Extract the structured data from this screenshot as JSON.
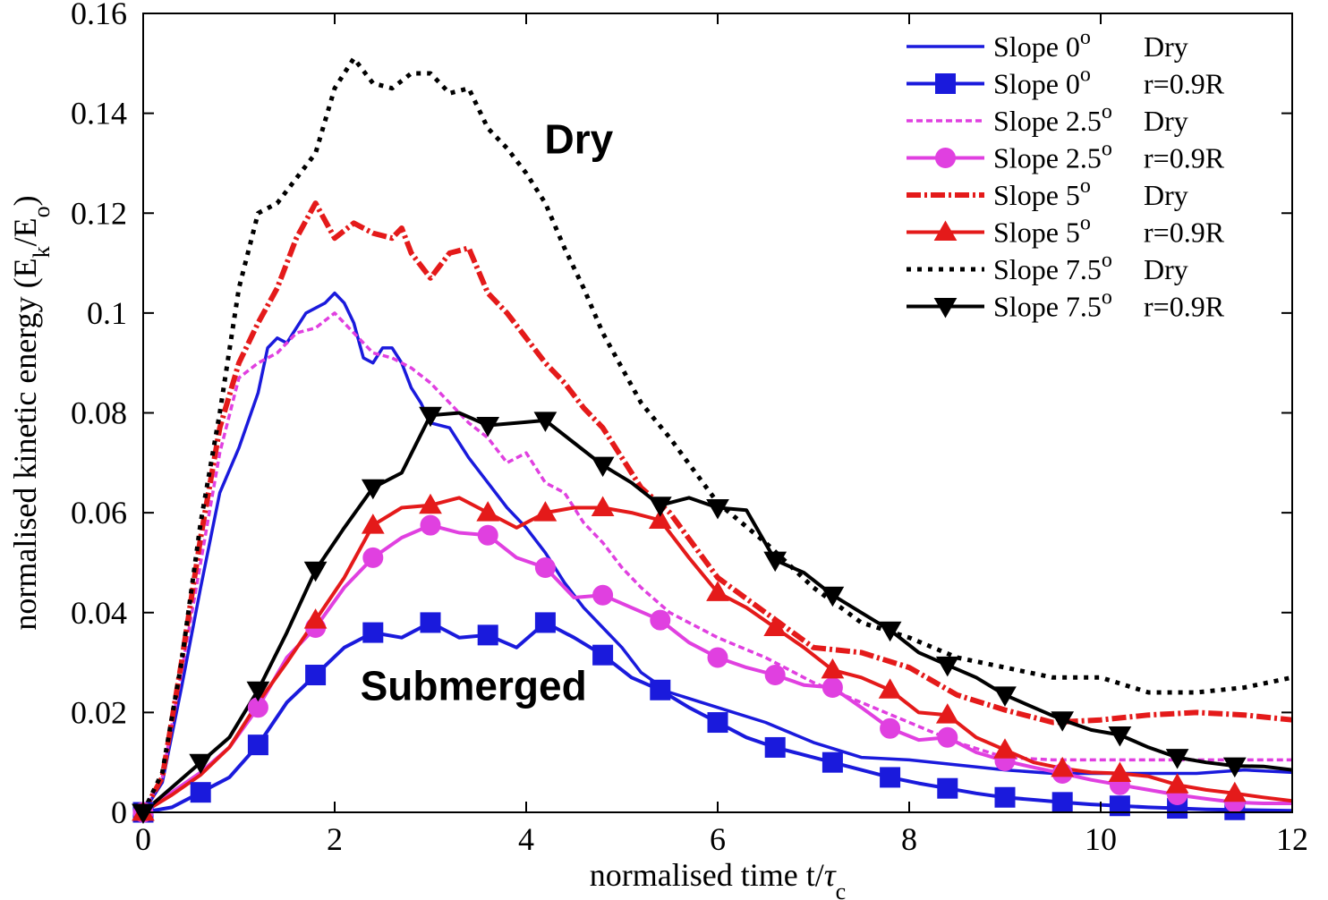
{
  "chart_data": {
    "type": "line",
    "xlabel": "normalised time t/τc",
    "xlabel_parts": {
      "main": "normalised time t/",
      "sym": "τ",
      "sub": "c"
    },
    "ylabel": "normalised kinetic energy (Ek/Eo)",
    "ylabel_parts": {
      "a": "normalised kinetic energy (E",
      "s1": "k",
      "b": "/E",
      "s2": "o",
      "c": ")"
    },
    "xlim": [
      0,
      12
    ],
    "ylim": [
      0,
      0.16
    ],
    "xticks": [
      0,
      2,
      4,
      6,
      8,
      10,
      12
    ],
    "yticks": [
      0,
      0.02,
      0.04,
      0.06,
      0.08,
      0.1,
      0.12,
      0.14,
      0.16
    ],
    "xtick_labels": [
      "0",
      "2",
      "4",
      "6",
      "8",
      "10",
      "12"
    ],
    "ytick_labels": [
      "0",
      "0.02",
      "0.04",
      "0.06",
      "0.08",
      "0.1",
      "0.12",
      "0.14",
      "0.16"
    ],
    "grid": false,
    "legend_position": "top-right",
    "annotations": [
      {
        "text": "Dry",
        "x": 4.55,
        "y": 0.132
      },
      {
        "text": "Submerged",
        "x": 3.45,
        "y": 0.0225
      }
    ],
    "series": [
      {
        "name": "Slope 0° Dry",
        "label": {
          "a": "Slope 0",
          "sup": "o",
          "b": "Dry"
        },
        "color": "#1a1adc",
        "style": "solid",
        "marker": "none",
        "x": [
          0,
          0.2,
          0.4,
          0.6,
          0.8,
          1.0,
          1.2,
          1.3,
          1.4,
          1.5,
          1.6,
          1.7,
          1.8,
          1.9,
          2.0,
          2.1,
          2.2,
          2.3,
          2.4,
          2.5,
          2.6,
          2.7,
          2.8,
          2.9,
          3.0,
          3.2,
          3.4,
          3.6,
          3.8,
          4.0,
          4.2,
          4.4,
          4.6,
          4.8,
          5.0,
          5.2,
          5.5,
          6.0,
          6.5,
          7.0,
          7.5,
          8.0,
          8.5,
          9.0,
          9.5,
          10.0,
          10.5,
          11.0,
          11.5,
          12.0
        ],
        "y": [
          0,
          0.006,
          0.025,
          0.045,
          0.064,
          0.073,
          0.084,
          0.093,
          0.095,
          0.094,
          0.097,
          0.1,
          0.101,
          0.102,
          0.104,
          0.102,
          0.098,
          0.091,
          0.09,
          0.093,
          0.093,
          0.09,
          0.085,
          0.082,
          0.078,
          0.077,
          0.071,
          0.066,
          0.061,
          0.057,
          0.052,
          0.046,
          0.041,
          0.037,
          0.033,
          0.028,
          0.024,
          0.021,
          0.018,
          0.014,
          0.011,
          0.0105,
          0.0095,
          0.0085,
          0.0078,
          0.0078,
          0.0078,
          0.0078,
          0.0085,
          0.008
        ]
      },
      {
        "name": "Slope 0° r=0.9R",
        "label": {
          "a": "Slope 0",
          "sup": "o",
          "b": "r=0.9R"
        },
        "color": "#1a1adc",
        "style": "solid",
        "marker": "square",
        "x": [
          0,
          0.3,
          0.6,
          0.9,
          1.2,
          1.5,
          1.8,
          2.1,
          2.4,
          2.7,
          3.0,
          3.3,
          3.6,
          3.9,
          4.2,
          4.5,
          4.8,
          5.1,
          5.4,
          5.7,
          6.0,
          6.3,
          6.6,
          6.9,
          7.2,
          7.5,
          7.8,
          8.1,
          8.4,
          8.7,
          9.0,
          9.3,
          9.6,
          9.9,
          10.2,
          10.5,
          10.8,
          11.1,
          11.4,
          11.7,
          12.0
        ],
        "y": [
          0,
          0.001,
          0.004,
          0.007,
          0.0135,
          0.022,
          0.0275,
          0.033,
          0.036,
          0.035,
          0.038,
          0.035,
          0.0355,
          0.033,
          0.038,
          0.035,
          0.0315,
          0.027,
          0.0245,
          0.021,
          0.018,
          0.015,
          0.013,
          0.0115,
          0.01,
          0.0085,
          0.007,
          0.0058,
          0.0048,
          0.0038,
          0.003,
          0.0025,
          0.002,
          0.0016,
          0.0013,
          0.001,
          0.0008,
          0.0006,
          0.0005,
          0.0004,
          0.0003
        ],
        "marker_x": [
          0,
          0.6,
          1.2,
          1.8,
          2.4,
          3.0,
          3.6,
          4.2,
          4.8,
          5.4,
          6.0,
          6.6,
          7.2,
          7.8,
          8.4,
          9.0,
          9.6,
          10.2,
          10.8,
          11.4
        ],
        "marker_y": [
          0,
          0.004,
          0.0135,
          0.0275,
          0.036,
          0.038,
          0.0355,
          0.038,
          0.0315,
          0.0245,
          0.018,
          0.013,
          0.01,
          0.007,
          0.0048,
          0.003,
          0.002,
          0.0013,
          0.0008,
          0.0005
        ]
      },
      {
        "name": "Slope 2.5° Dry",
        "label": {
          "a": "Slope 2.5",
          "sup": "o",
          "b": "Dry"
        },
        "color": "#e040e0",
        "style": "dashed",
        "marker": "none",
        "x": [
          0,
          0.2,
          0.4,
          0.6,
          0.8,
          1.0,
          1.2,
          1.4,
          1.6,
          1.8,
          2.0,
          2.2,
          2.4,
          2.6,
          2.8,
          3.0,
          3.2,
          3.4,
          3.6,
          3.8,
          4.0,
          4.2,
          4.4,
          4.6,
          4.8,
          5.0,
          5.2,
          5.5,
          6.0,
          6.5,
          7.0,
          7.5,
          8.0,
          8.5,
          9.0,
          9.5,
          10.0,
          10.5,
          11.0,
          11.5,
          12.0
        ],
        "y": [
          0,
          0.007,
          0.028,
          0.05,
          0.072,
          0.087,
          0.09,
          0.092,
          0.096,
          0.097,
          0.1,
          0.096,
          0.092,
          0.091,
          0.089,
          0.086,
          0.082,
          0.078,
          0.075,
          0.07,
          0.072,
          0.066,
          0.064,
          0.058,
          0.054,
          0.049,
          0.045,
          0.04,
          0.035,
          0.031,
          0.026,
          0.022,
          0.018,
          0.014,
          0.011,
          0.0105,
          0.0105,
          0.0105,
          0.0105,
          0.0105,
          0.0105
        ]
      },
      {
        "name": "Slope 2.5° r=0.9R",
        "label": {
          "a": "Slope 2.5",
          "sup": "o",
          "b": "r=0.9R"
        },
        "color": "#e040e0",
        "style": "solid",
        "marker": "circle",
        "x": [
          0,
          0.3,
          0.6,
          0.9,
          1.2,
          1.5,
          1.8,
          2.1,
          2.4,
          2.7,
          3.0,
          3.3,
          3.6,
          3.9,
          4.2,
          4.5,
          4.8,
          5.1,
          5.4,
          5.7,
          6.0,
          6.3,
          6.6,
          6.9,
          7.2,
          7.5,
          7.8,
          8.1,
          8.4,
          8.7,
          9.0,
          9.3,
          9.6,
          9.9,
          10.2,
          10.5,
          10.8,
          11.1,
          11.4,
          11.7,
          12.0
        ],
        "y": [
          0,
          0.004,
          0.008,
          0.013,
          0.021,
          0.031,
          0.037,
          0.045,
          0.051,
          0.055,
          0.0575,
          0.056,
          0.0555,
          0.051,
          0.049,
          0.043,
          0.0435,
          0.041,
          0.0385,
          0.034,
          0.031,
          0.029,
          0.0275,
          0.0255,
          0.025,
          0.021,
          0.0168,
          0.0145,
          0.015,
          0.012,
          0.0103,
          0.009,
          0.0078,
          0.0065,
          0.0055,
          0.0045,
          0.0035,
          0.0027,
          0.002,
          0.0018,
          0.0018
        ],
        "marker_x": [
          0,
          1.2,
          1.8,
          2.4,
          3.0,
          3.6,
          4.2,
          4.8,
          5.4,
          6.0,
          6.6,
          7.2,
          7.8,
          8.4,
          9.0,
          9.6,
          10.2,
          10.8,
          11.4
        ],
        "marker_y": [
          0,
          0.021,
          0.037,
          0.051,
          0.0575,
          0.0555,
          0.049,
          0.0435,
          0.0385,
          0.031,
          0.0275,
          0.025,
          0.0168,
          0.015,
          0.0103,
          0.0078,
          0.0055,
          0.0035,
          0.002
        ]
      },
      {
        "name": "Slope 5° Dry",
        "label": {
          "a": "Slope 5",
          "sup": "o",
          "b": "Dry"
        },
        "color": "#e41a1a",
        "style": "dashdot",
        "marker": "none",
        "x": [
          0,
          0.2,
          0.4,
          0.6,
          0.8,
          1.0,
          1.2,
          1.4,
          1.6,
          1.8,
          2.0,
          2.2,
          2.4,
          2.6,
          2.7,
          2.8,
          3.0,
          3.2,
          3.4,
          3.6,
          3.8,
          4.0,
          4.2,
          4.4,
          4.6,
          4.8,
          5.0,
          5.2,
          5.5,
          6.0,
          6.5,
          7.0,
          7.5,
          8.0,
          8.5,
          9.0,
          9.5,
          10.0,
          10.5,
          11.0,
          11.5,
          12.0
        ],
        "y": [
          0,
          0.007,
          0.03,
          0.055,
          0.077,
          0.09,
          0.098,
          0.105,
          0.115,
          0.122,
          0.115,
          0.118,
          0.116,
          0.115,
          0.117,
          0.112,
          0.107,
          0.112,
          0.113,
          0.104,
          0.1,
          0.095,
          0.09,
          0.086,
          0.081,
          0.077,
          0.071,
          0.065,
          0.06,
          0.047,
          0.04,
          0.033,
          0.032,
          0.029,
          0.0235,
          0.0205,
          0.018,
          0.0185,
          0.0195,
          0.02,
          0.0195,
          0.0185
        ]
      },
      {
        "name": "Slope 5° r=0.9R",
        "label": {
          "a": "Slope 5",
          "sup": "o",
          "b": "r=0.9R"
        },
        "color": "#e41a1a",
        "style": "solid",
        "marker": "triangle-up",
        "x": [
          0,
          0.3,
          0.6,
          0.9,
          1.2,
          1.5,
          1.8,
          2.1,
          2.4,
          2.7,
          3.0,
          3.3,
          3.6,
          3.9,
          4.2,
          4.5,
          4.8,
          5.1,
          5.4,
          5.7,
          6.0,
          6.3,
          6.6,
          6.9,
          7.2,
          7.5,
          7.8,
          8.1,
          8.4,
          8.7,
          9.0,
          9.3,
          9.6,
          9.9,
          10.2,
          10.5,
          10.8,
          11.1,
          11.4,
          11.7,
          12.0
        ],
        "y": [
          0,
          0.0035,
          0.0075,
          0.013,
          0.022,
          0.03,
          0.0385,
          0.047,
          0.0575,
          0.061,
          0.0615,
          0.063,
          0.06,
          0.057,
          0.06,
          0.061,
          0.061,
          0.06,
          0.0585,
          0.051,
          0.044,
          0.041,
          0.037,
          0.033,
          0.0285,
          0.027,
          0.0245,
          0.02,
          0.0195,
          0.015,
          0.0125,
          0.01,
          0.0088,
          0.008,
          0.0078,
          0.0072,
          0.0055,
          0.0045,
          0.0038,
          0.003,
          0.0023
        ],
        "marker_x": [
          0,
          1.8,
          2.4,
          3.0,
          3.6,
          4.2,
          4.8,
          5.4,
          6.0,
          6.6,
          7.2,
          7.8,
          8.4,
          9.0,
          9.6,
          10.2,
          10.8,
          11.4
        ],
        "marker_y": [
          0,
          0.0385,
          0.0575,
          0.0615,
          0.06,
          0.06,
          0.061,
          0.0585,
          0.044,
          0.037,
          0.0285,
          0.0245,
          0.0195,
          0.0125,
          0.0088,
          0.0078,
          0.0055,
          0.0038
        ]
      },
      {
        "name": "Slope 7.5° Dry",
        "label": {
          "a": "Slope 7.5",
          "sup": "o",
          "b": "Dry"
        },
        "color": "#000000",
        "style": "dotted",
        "marker": "none",
        "x": [
          0,
          0.2,
          0.4,
          0.6,
          0.8,
          1.0,
          1.2,
          1.4,
          1.6,
          1.8,
          2.0,
          2.2,
          2.4,
          2.6,
          2.8,
          3.0,
          3.2,
          3.4,
          3.6,
          3.8,
          4.0,
          4.2,
          4.4,
          4.6,
          4.8,
          5.0,
          5.2,
          5.5,
          6.0,
          6.5,
          7.0,
          7.5,
          8.0,
          8.5,
          9.0,
          9.5,
          10.0,
          10.5,
          11.0,
          11.5,
          12.0
        ],
        "y": [
          0,
          0.008,
          0.03,
          0.058,
          0.08,
          0.105,
          0.12,
          0.122,
          0.127,
          0.132,
          0.145,
          0.151,
          0.146,
          0.145,
          0.148,
          0.148,
          0.144,
          0.145,
          0.137,
          0.133,
          0.128,
          0.122,
          0.113,
          0.105,
          0.096,
          0.089,
          0.082,
          0.075,
          0.062,
          0.054,
          0.045,
          0.038,
          0.035,
          0.031,
          0.029,
          0.027,
          0.027,
          0.024,
          0.024,
          0.025,
          0.027
        ]
      },
      {
        "name": "Slope 7.5° r=0.9R",
        "label": {
          "a": "Slope 7.5",
          "sup": "o",
          "b": "r=0.9R"
        },
        "color": "#000000",
        "style": "solid",
        "marker": "triangle-down",
        "x": [
          0,
          0.3,
          0.6,
          0.9,
          1.2,
          1.5,
          1.8,
          2.1,
          2.4,
          2.7,
          3.0,
          3.3,
          3.6,
          3.9,
          4.2,
          4.5,
          4.8,
          5.1,
          5.4,
          5.7,
          6.0,
          6.3,
          6.6,
          6.9,
          7.2,
          7.5,
          7.8,
          8.1,
          8.4,
          8.7,
          9.0,
          9.3,
          9.6,
          9.9,
          10.2,
          10.5,
          10.8,
          11.1,
          11.4,
          11.7,
          12.0
        ],
        "y": [
          0,
          0.005,
          0.01,
          0.015,
          0.0245,
          0.036,
          0.0485,
          0.057,
          0.065,
          0.068,
          0.0795,
          0.08,
          0.0775,
          0.078,
          0.0785,
          0.074,
          0.0695,
          0.066,
          0.0615,
          0.063,
          0.061,
          0.0605,
          0.0505,
          0.048,
          0.0435,
          0.04,
          0.0365,
          0.032,
          0.0295,
          0.027,
          0.0235,
          0.021,
          0.0185,
          0.0165,
          0.0155,
          0.013,
          0.011,
          0.01,
          0.0093,
          0.0092,
          0.0085
        ],
        "marker_x": [
          0,
          0.6,
          1.2,
          1.8,
          2.4,
          3.0,
          3.6,
          4.2,
          4.8,
          5.4,
          6.0,
          6.6,
          7.2,
          7.8,
          8.4,
          9.0,
          9.6,
          10.2,
          10.8,
          11.4
        ],
        "marker_y": [
          0,
          0.01,
          0.0245,
          0.0485,
          0.065,
          0.0795,
          0.0775,
          0.0785,
          0.0695,
          0.0615,
          0.061,
          0.0505,
          0.0435,
          0.0365,
          0.0295,
          0.0235,
          0.0185,
          0.0155,
          0.011,
          0.0093
        ]
      }
    ]
  }
}
